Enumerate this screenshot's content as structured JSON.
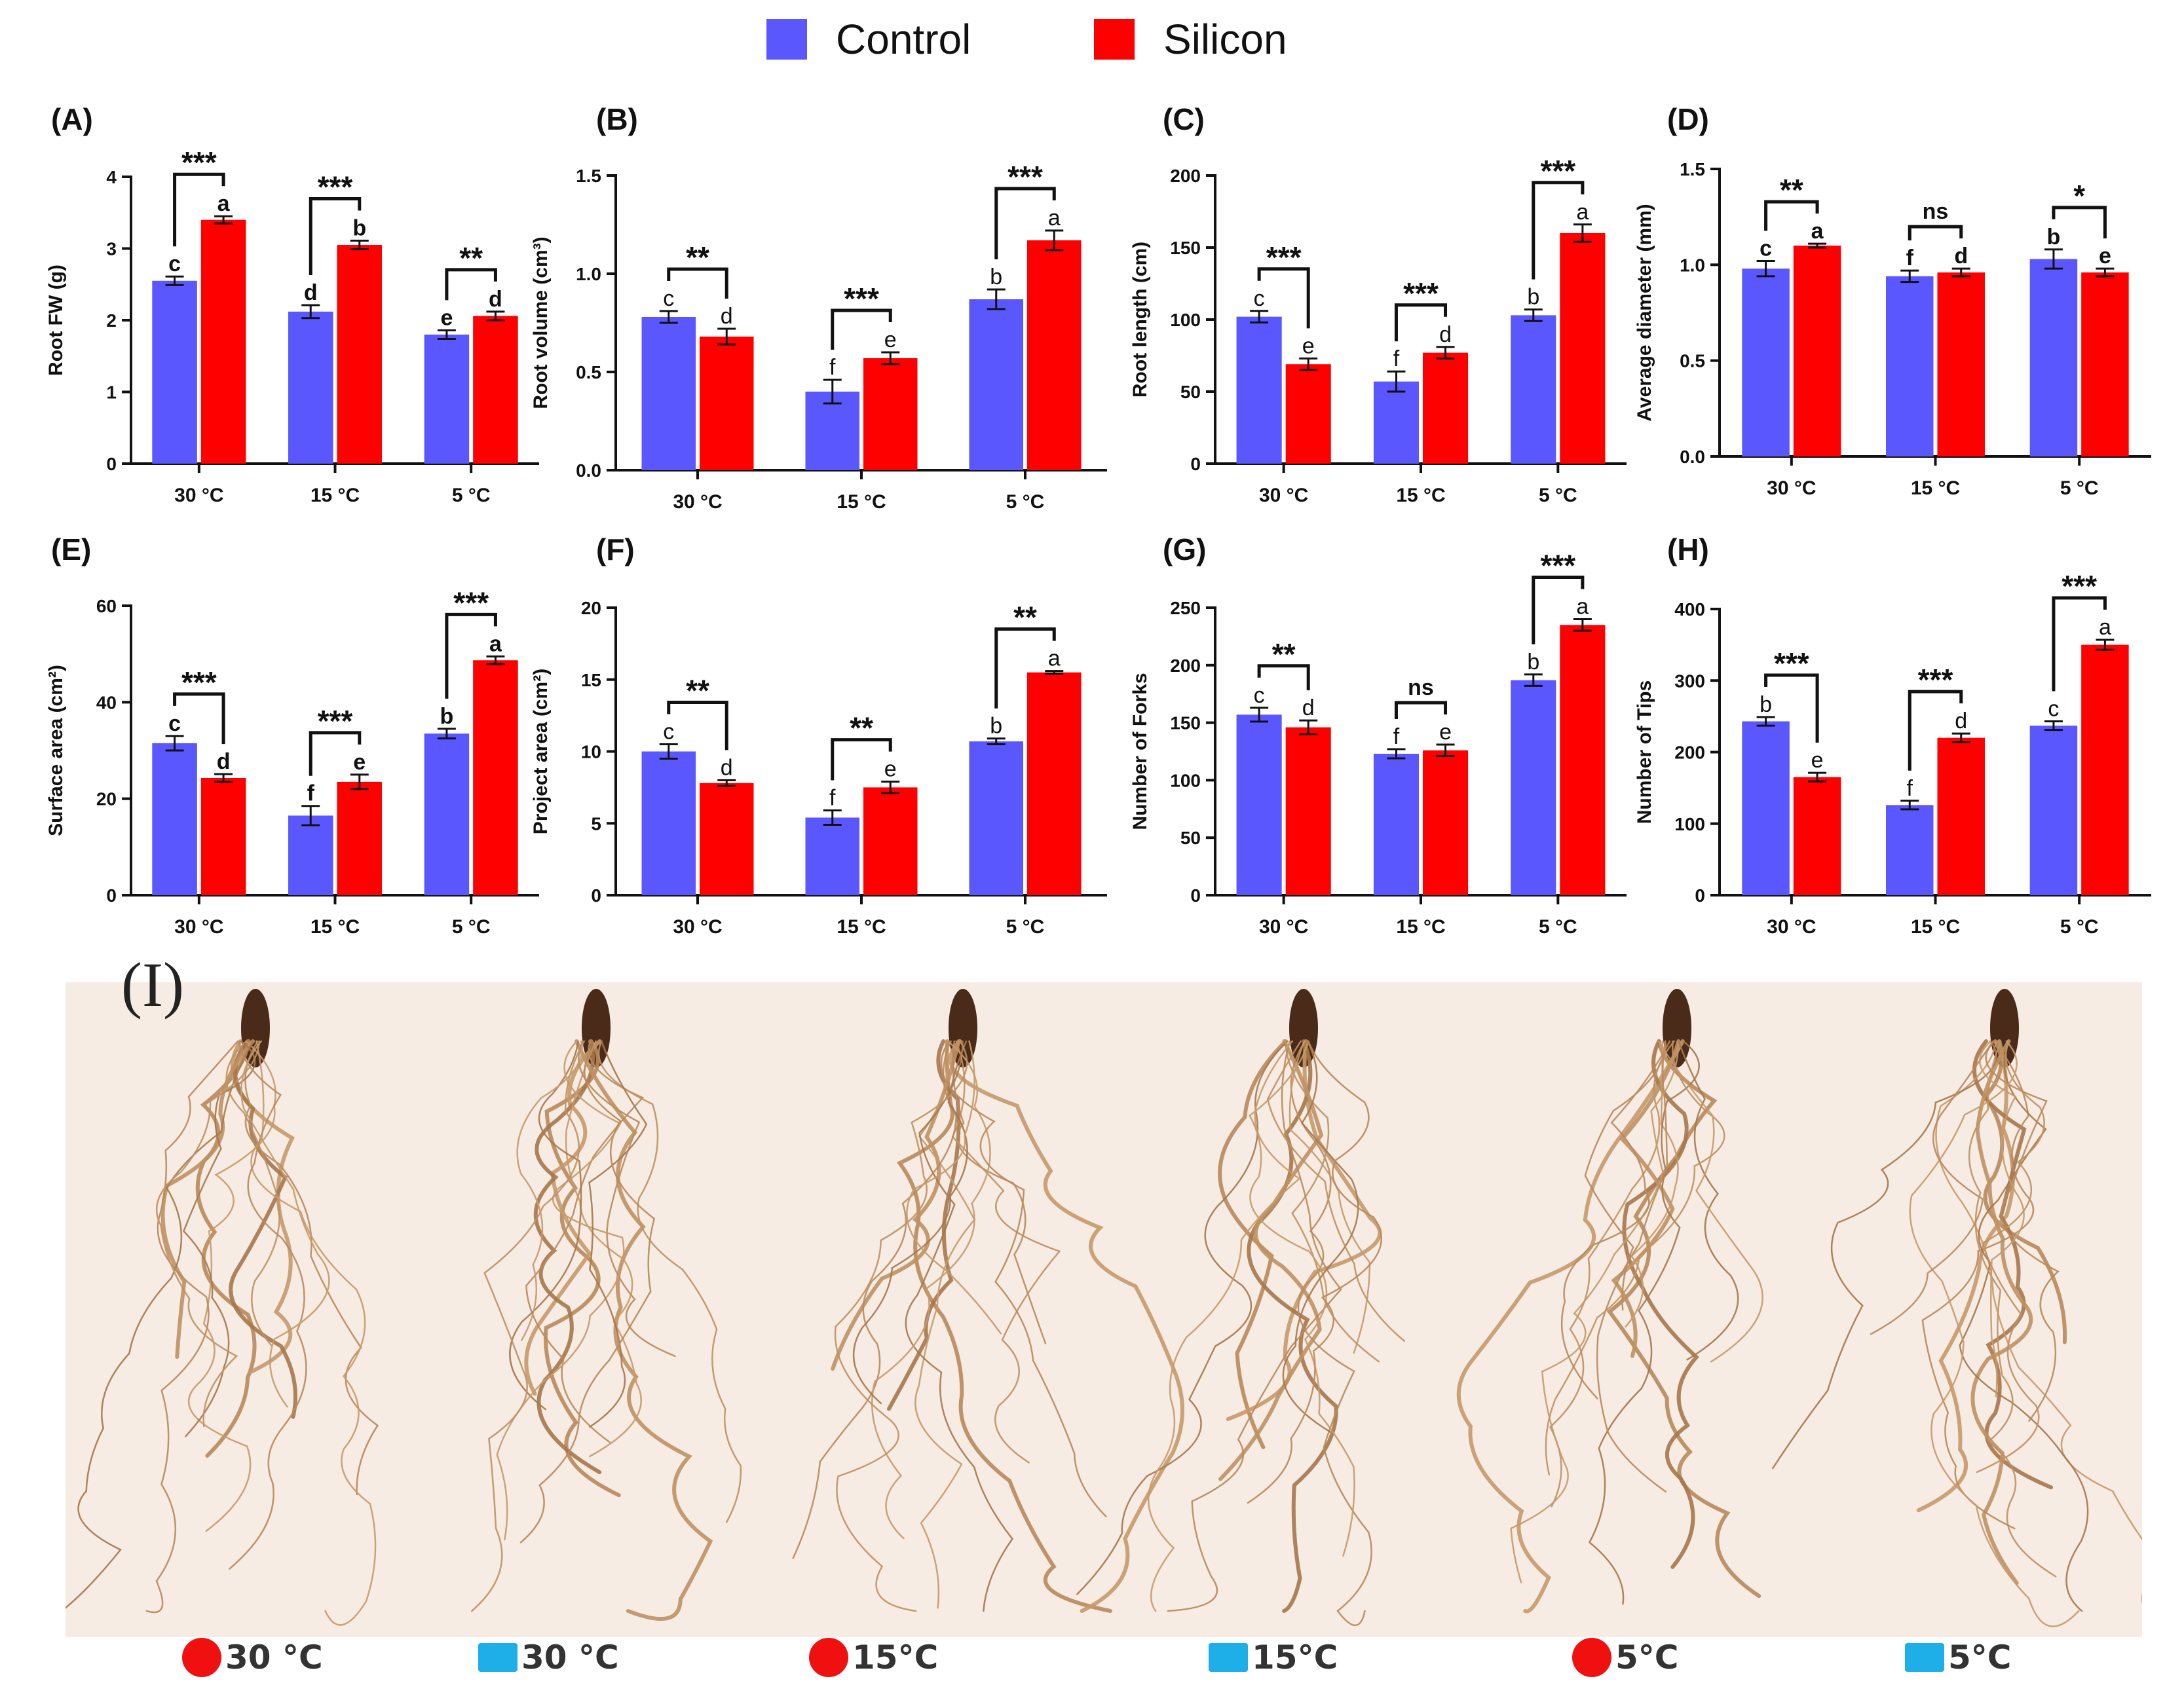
{
  "legend": {
    "control_label": "Control",
    "silicon_label": "Silicon",
    "control_color": "#5b57ff",
    "silicon_color": "#ff0000"
  },
  "chart_data": [
    {
      "panel": "(A)",
      "type": "bar",
      "ylabel": "Root FW (g)",
      "categories": [
        "30 °C",
        "15 °C",
        "5 °C"
      ],
      "ylim": [
        0,
        4
      ],
      "yticks": [
        0,
        1,
        2,
        3,
        4
      ],
      "ytick_labels": [
        "0",
        "1",
        "2",
        "3",
        "4"
      ],
      "bold_letters": true,
      "series": [
        {
          "name": "Control",
          "values": [
            2.55,
            2.12,
            1.8
          ],
          "errors": [
            0.06,
            0.09,
            0.06
          ],
          "letters": [
            "c",
            "d",
            "e"
          ]
        },
        {
          "name": "Silicon",
          "values": [
            3.4,
            3.05,
            2.06
          ],
          "errors": [
            0.05,
            0.06,
            0.06
          ],
          "letters": [
            "a",
            "b",
            "d"
          ]
        }
      ],
      "significance": [
        "***",
        "***",
        "**"
      ]
    },
    {
      "panel": "(B)",
      "type": "bar",
      "ylabel": "Root volume (cm³)",
      "categories": [
        "30 °C",
        "15 °C",
        "5 °C"
      ],
      "ylim": [
        0,
        1.5
      ],
      "yticks": [
        0,
        0.5,
        1.0,
        1.5
      ],
      "ytick_labels": [
        "0.0",
        "0.5",
        "1.0",
        "1.5"
      ],
      "bold_letters": false,
      "series": [
        {
          "name": "Control",
          "values": [
            0.78,
            0.4,
            0.87
          ],
          "errors": [
            0.03,
            0.06,
            0.05
          ],
          "letters": [
            "c",
            "f",
            "b"
          ]
        },
        {
          "name": "Silicon",
          "values": [
            0.68,
            0.57,
            1.17
          ],
          "errors": [
            0.04,
            0.03,
            0.05
          ],
          "letters": [
            "d",
            "e",
            "a"
          ]
        }
      ],
      "significance": [
        "**",
        "***",
        "***"
      ]
    },
    {
      "panel": "(C)",
      "type": "bar",
      "ylabel": "Root length (cm)",
      "categories": [
        "30 °C",
        "15 °C",
        "5 °C"
      ],
      "ylim": [
        0,
        200
      ],
      "yticks": [
        0,
        50,
        100,
        150,
        200
      ],
      "ytick_labels": [
        "0",
        "50",
        "100",
        "150",
        "200"
      ],
      "bold_letters": false,
      "series": [
        {
          "name": "Control",
          "values": [
            102,
            57,
            103
          ],
          "errors": [
            4,
            7,
            4
          ],
          "letters": [
            "c",
            "f",
            "b"
          ]
        },
        {
          "name": "Silicon",
          "values": [
            69,
            77,
            160
          ],
          "errors": [
            4,
            4,
            6
          ],
          "letters": [
            "e",
            "d",
            "a"
          ]
        }
      ],
      "significance": [
        "***",
        "***",
        "***"
      ]
    },
    {
      "panel": "(D)",
      "type": "bar",
      "ylabel": "Average diameter (mm)",
      "categories": [
        "30 °C",
        "15 °C",
        "5 °C"
      ],
      "ylim": [
        0,
        1.5
      ],
      "yticks": [
        0,
        0.5,
        1.0,
        1.5
      ],
      "ytick_labels": [
        "0.0",
        "0.5",
        "1.0",
        "1.5"
      ],
      "bold_letters": true,
      "series": [
        {
          "name": "Control",
          "values": [
            0.98,
            0.94,
            1.03
          ],
          "errors": [
            0.04,
            0.03,
            0.05
          ],
          "letters": [
            "c",
            "f",
            "b"
          ]
        },
        {
          "name": "Silicon",
          "values": [
            1.1,
            0.96,
            0.96
          ],
          "errors": [
            0.01,
            0.02,
            0.02
          ],
          "letters": [
            "a",
            "d",
            "e"
          ]
        }
      ],
      "significance": [
        "**",
        "ns",
        "*"
      ]
    },
    {
      "panel": "(E)",
      "type": "bar",
      "ylabel": "Surface area (cm²)",
      "categories": [
        "30 °C",
        "15 °C",
        "5 °C"
      ],
      "ylim": [
        0,
        60
      ],
      "yticks": [
        0,
        20,
        40,
        60
      ],
      "ytick_labels": [
        "0",
        "20",
        "40",
        "60"
      ],
      "bold_letters": true,
      "series": [
        {
          "name": "Control",
          "values": [
            31.5,
            16.5,
            33.5
          ],
          "errors": [
            1.5,
            2,
            1
          ],
          "letters": [
            "c",
            "f",
            "b"
          ]
        },
        {
          "name": "Silicon",
          "values": [
            24.3,
            23.5,
            48.7
          ],
          "errors": [
            0.8,
            1.5,
            0.8
          ],
          "letters": [
            "d",
            "e",
            "a"
          ]
        }
      ],
      "significance": [
        "***",
        "***",
        "***"
      ]
    },
    {
      "panel": "(F)",
      "type": "bar",
      "ylabel": "Project area (cm²)",
      "categories": [
        "30 °C",
        "15 °C",
        "5 °C"
      ],
      "ylim": [
        0,
        20
      ],
      "yticks": [
        0,
        5,
        10,
        15,
        20
      ],
      "ytick_labels": [
        "0",
        "5",
        "10",
        "15",
        "20"
      ],
      "bold_letters": false,
      "series": [
        {
          "name": "Control",
          "values": [
            10.0,
            5.4,
            10.7
          ],
          "errors": [
            0.5,
            0.5,
            0.2
          ],
          "letters": [
            "c",
            "f",
            "b"
          ]
        },
        {
          "name": "Silicon",
          "values": [
            7.8,
            7.5,
            15.5
          ],
          "errors": [
            0.2,
            0.4,
            0.1
          ],
          "letters": [
            "d",
            "e",
            "a"
          ]
        }
      ],
      "significance": [
        "**",
        "**",
        "**"
      ]
    },
    {
      "panel": "(G)",
      "type": "bar",
      "ylabel": "Number of Forks",
      "categories": [
        "30 °C",
        "15 °C",
        "5 °C"
      ],
      "ylim": [
        0,
        250
      ],
      "yticks": [
        0,
        50,
        100,
        150,
        200,
        250
      ],
      "ytick_labels": [
        "0",
        "50",
        "100",
        "150",
        "200",
        "250"
      ],
      "bold_letters": false,
      "series": [
        {
          "name": "Control",
          "values": [
            157,
            123,
            187
          ],
          "errors": [
            6,
            4,
            5
          ],
          "letters": [
            "c",
            "f",
            "b"
          ]
        },
        {
          "name": "Silicon",
          "values": [
            146,
            126,
            235
          ],
          "errors": [
            6,
            5,
            5
          ],
          "letters": [
            "d",
            "e",
            "a"
          ]
        }
      ],
      "significance": [
        "**",
        "ns",
        "***"
      ]
    },
    {
      "panel": "(H)",
      "type": "bar",
      "ylabel": "Number of Tips",
      "categories": [
        "30 °C",
        "15 °C",
        "5 °C"
      ],
      "ylim": [
        0,
        400
      ],
      "yticks": [
        0,
        100,
        200,
        300,
        400
      ],
      "ytick_labels": [
        "0",
        "100",
        "200",
        "300",
        "400"
      ],
      "bold_letters": false,
      "series": [
        {
          "name": "Control",
          "values": [
            243,
            126,
            237
          ],
          "errors": [
            6,
            6,
            6
          ],
          "letters": [
            "b",
            "f",
            "c"
          ]
        },
        {
          "name": "Silicon",
          "values": [
            165,
            220,
            350
          ],
          "errors": [
            6,
            6,
            7
          ],
          "letters": [
            "e",
            "d",
            "a"
          ]
        }
      ],
      "significance": [
        "***",
        "***",
        "***"
      ]
    }
  ],
  "photo_panel": {
    "label": "(I)",
    "captions": [
      {
        "marker": "red-dot",
        "text": "30 °C"
      },
      {
        "marker": "blue-square",
        "text": "30 °C"
      },
      {
        "marker": "red-dot",
        "text": "15°C"
      },
      {
        "marker": "blue-square",
        "text": "15°C"
      },
      {
        "marker": "red-dot",
        "text": "5°C"
      },
      {
        "marker": "blue-square",
        "text": "5°C"
      }
    ]
  }
}
